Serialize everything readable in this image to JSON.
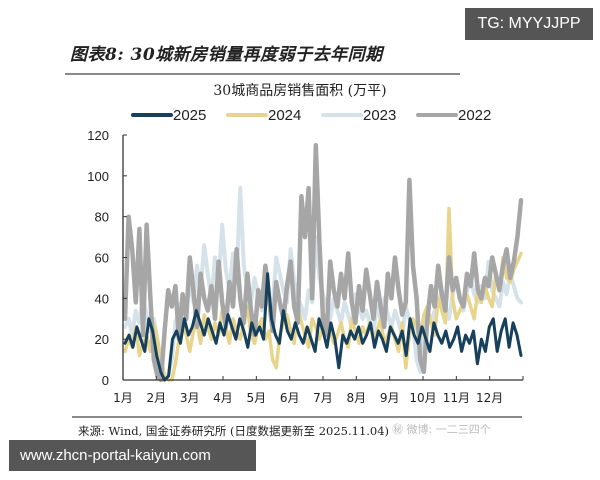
{
  "badges": {
    "tg": "TG: MYYJJPP",
    "url": "www.zhcn-portal-kaiyun.com",
    "weibo_watermark": "㊙ 微博: 一二三四个"
  },
  "figure": {
    "title": "图表8: 30城新房销量再度弱于去年同期",
    "source": "来源: Wind, 国金证券研究所 (日度数据更新至 2025.11.04)"
  },
  "chart_data": {
    "type": "line",
    "title": "30城商品房销售面积 (万平)",
    "xlabel": "",
    "ylabel": "",
    "ylim": [
      0,
      120
    ],
    "yticks": [
      0,
      20,
      40,
      60,
      80,
      100,
      120
    ],
    "categories": [
      "1月",
      "2月",
      "3月",
      "4月",
      "5月",
      "6月",
      "7月",
      "8月",
      "9月",
      "10月",
      "11月",
      "12月"
    ],
    "grid": false,
    "legend_position": "top",
    "x_unit": "day_of_year_sampled_every_3_days",
    "series": [
      {
        "name": "2025",
        "color": "#17405c",
        "values": [
          18,
          22,
          16,
          26,
          20,
          14,
          30,
          24,
          12,
          4,
          0,
          2,
          20,
          24,
          18,
          30,
          22,
          26,
          34,
          28,
          22,
          30,
          24,
          18,
          28,
          22,
          32,
          26,
          20,
          30,
          24,
          16,
          28,
          22,
          26,
          20,
          52,
          30,
          22,
          18,
          34,
          24,
          20,
          28,
          22,
          18,
          26,
          20,
          14,
          30,
          24,
          16,
          28,
          20,
          6,
          22,
          18,
          24,
          20,
          26,
          18,
          22,
          28,
          16,
          24,
          20,
          14,
          26,
          22,
          18,
          24,
          12,
          30,
          22,
          18,
          26,
          20,
          14,
          28,
          22,
          18,
          24,
          16,
          20,
          26,
          14,
          22,
          18,
          24,
          8,
          20,
          14,
          26,
          30,
          14,
          24,
          30,
          16,
          28,
          22,
          12
        ]
      },
      {
        "name": "2024",
        "color": "#e8d48c",
        "values": [
          14,
          20,
          16,
          26,
          12,
          18,
          22,
          14,
          28,
          20,
          10,
          2,
          0,
          0,
          8,
          20,
          30,
          22,
          14,
          24,
          28,
          18,
          32,
          26,
          20,
          28,
          22,
          34,
          26,
          18,
          30,
          24,
          20,
          28,
          36,
          22,
          18,
          26,
          30,
          20,
          24,
          10,
          6,
          22,
          28,
          32,
          24,
          18,
          36,
          28,
          22,
          16,
          30,
          26,
          20,
          28,
          32,
          24,
          18,
          22,
          28,
          20,
          16,
          30,
          24,
          18,
          26,
          22,
          28,
          20,
          24,
          30,
          18,
          22,
          26,
          20,
          14,
          28,
          6,
          22,
          30,
          26,
          20,
          32,
          36,
          28,
          22,
          40,
          34,
          28,
          84,
          40,
          30,
          34,
          38,
          42,
          36,
          30,
          44,
          38,
          46,
          40,
          36,
          52,
          44,
          60,
          50,
          48,
          54,
          58,
          62
        ]
      },
      {
        "name": "2023",
        "color": "#d5e2ea",
        "values": [
          26,
          30,
          22,
          34,
          28,
          40,
          32,
          24,
          30,
          20,
          6,
          0,
          2,
          10,
          28,
          34,
          40,
          32,
          48,
          38,
          56,
          44,
          66,
          52,
          40,
          60,
          48,
          76,
          54,
          44,
          62,
          50,
          94,
          56,
          44,
          38,
          50,
          42,
          34,
          46,
          40,
          36,
          60,
          52,
          44,
          38,
          64,
          48,
          40,
          36,
          30,
          44,
          38,
          70,
          50,
          42,
          36,
          30,
          40,
          34,
          28,
          38,
          32,
          26,
          42,
          36,
          30,
          34,
          28,
          24,
          36,
          30,
          40,
          32,
          26,
          34,
          28,
          22,
          36,
          30,
          26,
          10,
          4,
          20,
          32,
          28,
          34,
          38,
          44,
          36,
          30,
          42,
          48,
          40,
          34,
          44,
          50,
          42,
          38,
          46,
          40,
          58,
          44,
          40,
          36,
          48,
          42,
          52,
          46,
          40,
          38
        ]
      },
      {
        "name": "2022",
        "color": "#a6a6a6",
        "values": [
          30,
          80,
          64,
          38,
          74,
          22,
          76,
          42,
          10,
          2,
          0,
          24,
          44,
          36,
          46,
          20,
          42,
          30,
          60,
          44,
          26,
          52,
          40,
          34,
          46,
          30,
          58,
          38,
          26,
          48,
          36,
          64,
          40,
          28,
          52,
          34,
          22,
          44,
          36,
          56,
          40,
          24,
          48,
          38,
          30,
          46,
          58,
          36,
          28,
          90,
          70,
          94,
          40,
          115,
          68,
          30,
          22,
          58,
          44,
          36,
          52,
          40,
          62,
          38,
          28,
          46,
          34,
          54,
          42,
          30,
          48,
          36,
          26,
          52,
          40,
          60,
          44,
          32,
          38,
          98,
          56,
          40,
          10,
          4,
          30,
          46,
          36,
          56,
          42,
          34,
          60,
          44,
          50,
          40,
          36,
          52,
          46,
          62,
          44,
          40,
          50,
          46,
          60,
          52,
          44,
          56,
          64,
          50,
          58,
          70,
          88
        ]
      }
    ]
  },
  "legend": [
    {
      "label": "2025",
      "color": "#17405c"
    },
    {
      "label": "2024",
      "color": "#e8d48c"
    },
    {
      "label": "2023",
      "color": "#d5e2ea"
    },
    {
      "label": "2022",
      "color": "#a6a6a6"
    }
  ]
}
